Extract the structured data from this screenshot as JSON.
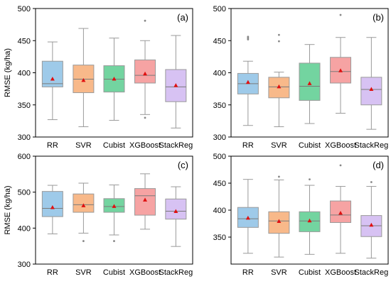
{
  "colors": {
    "RR": "#9ecae9",
    "SVR": "#f8b98a",
    "Cubist": "#73d4a0",
    "XGBoost": "#f6a3a3",
    "StackReg": "#d7c2f3",
    "mean_marker": "#e01010",
    "outlier": "#888888",
    "median": "#7a7a7a",
    "whisker": "#9a9a9a"
  },
  "chart_data": [
    {
      "type": "box",
      "panel_label": "(a)",
      "ylabel": "RMSE (kg/ha)",
      "ylim": [
        300,
        500
      ],
      "yticks": [
        300,
        350,
        400,
        450,
        500
      ],
      "categories": [
        "RR",
        "SVR",
        "Cubist",
        "XGBoost",
        "StackReg"
      ],
      "boxes": [
        {
          "whisker_low": 327,
          "q1": 378,
          "median": 383,
          "q3": 418,
          "whisker_high": 448,
          "mean": 390,
          "outliers": []
        },
        {
          "whisker_low": 316,
          "q1": 369,
          "median": 390,
          "q3": 412,
          "whisker_high": 469,
          "mean": 388,
          "outliers": []
        },
        {
          "whisker_low": 326,
          "q1": 370,
          "median": 390,
          "q3": 411,
          "whisker_high": 454,
          "mean": 390,
          "outliers": []
        },
        {
          "whisker_low": 335,
          "q1": 384,
          "median": 396,
          "q3": 420,
          "whisker_high": 450,
          "mean": 398,
          "outliers": [
            481,
            330
          ]
        },
        {
          "whisker_low": 314,
          "q1": 355,
          "median": 378,
          "q3": 405,
          "whisker_high": 458,
          "mean": 380,
          "outliers": []
        }
      ]
    },
    {
      "type": "box",
      "panel_label": "(b)",
      "ylabel": "",
      "ylim": [
        300,
        500
      ],
      "yticks": [
        300,
        350,
        400,
        450,
        500
      ],
      "categories": [
        "RR",
        "SVR",
        "Cubist",
        "XGBoost",
        "StackReg"
      ],
      "boxes": [
        {
          "whisker_low": 318,
          "q1": 367,
          "median": 383,
          "q3": 399,
          "whisker_high": 418,
          "mean": 385,
          "outliers": [
            452,
            454,
            456
          ]
        },
        {
          "whisker_low": 316,
          "q1": 361,
          "median": 378,
          "q3": 393,
          "whisker_high": 401,
          "mean": 378,
          "outliers": [
            449,
            459
          ]
        },
        {
          "whisker_low": 321,
          "q1": 357,
          "median": 379,
          "q3": 415,
          "whisker_high": 444,
          "mean": 383,
          "outliers": []
        },
        {
          "whisker_low": 337,
          "q1": 384,
          "median": 402,
          "q3": 424,
          "whisker_high": 455,
          "mean": 403,
          "outliers": [
            490
          ]
        },
        {
          "whisker_low": 312,
          "q1": 350,
          "median": 374,
          "q3": 393,
          "whisker_high": 455,
          "mean": 374,
          "outliers": []
        }
      ]
    },
    {
      "type": "box",
      "panel_label": "(c)",
      "ylabel": "RMSE (kg/ha)",
      "ylim": [
        300,
        600
      ],
      "yticks": [
        300,
        400,
        500,
        600
      ],
      "categories": [
        "RR",
        "SVR",
        "Cubist",
        "XGBoost",
        "StackReg"
      ],
      "boxes": [
        {
          "whisker_low": 384,
          "q1": 432,
          "median": 455,
          "q3": 502,
          "whisker_high": 519,
          "mean": 457,
          "outliers": []
        },
        {
          "whisker_low": 386,
          "q1": 444,
          "median": 465,
          "q3": 495,
          "whisker_high": 525,
          "mean": 462,
          "outliers": [
            364
          ]
        },
        {
          "whisker_low": 381,
          "q1": 444,
          "median": 460,
          "q3": 482,
          "whisker_high": 520,
          "mean": 460,
          "outliers": [
            364
          ]
        },
        {
          "whisker_low": 397,
          "q1": 436,
          "median": 490,
          "q3": 510,
          "whisker_high": 551,
          "mean": 478,
          "outliers": []
        },
        {
          "whisker_low": 349,
          "q1": 425,
          "median": 447,
          "q3": 481,
          "whisker_high": 515,
          "mean": 446,
          "outliers": []
        }
      ]
    },
    {
      "type": "box",
      "panel_label": "(d)",
      "ylabel": "",
      "ylim": [
        300,
        500
      ],
      "yticks": [
        350,
        400,
        450,
        500
      ],
      "categories": [
        "RR",
        "SVR",
        "Cubist",
        "XGBoost",
        "StackReg"
      ],
      "boxes": [
        {
          "whisker_low": 320,
          "q1": 368,
          "median": 384,
          "q3": 405,
          "whisker_high": 457,
          "mean": 385,
          "outliers": []
        },
        {
          "whisker_low": 313,
          "q1": 357,
          "median": 380,
          "q3": 397,
          "whisker_high": 456,
          "mean": 379,
          "outliers": [
            462
          ]
        },
        {
          "whisker_low": 318,
          "q1": 360,
          "median": 380,
          "q3": 397,
          "whisker_high": 446,
          "mean": 380,
          "outliers": [
            457
          ]
        },
        {
          "whisker_low": 320,
          "q1": 377,
          "median": 391,
          "q3": 417,
          "whisker_high": 444,
          "mean": 394,
          "outliers": [
            483
          ]
        },
        {
          "whisker_low": 311,
          "q1": 351,
          "median": 371,
          "q3": 390,
          "whisker_high": 444,
          "mean": 372,
          "outliers": [
            452
          ]
        }
      ]
    }
  ]
}
